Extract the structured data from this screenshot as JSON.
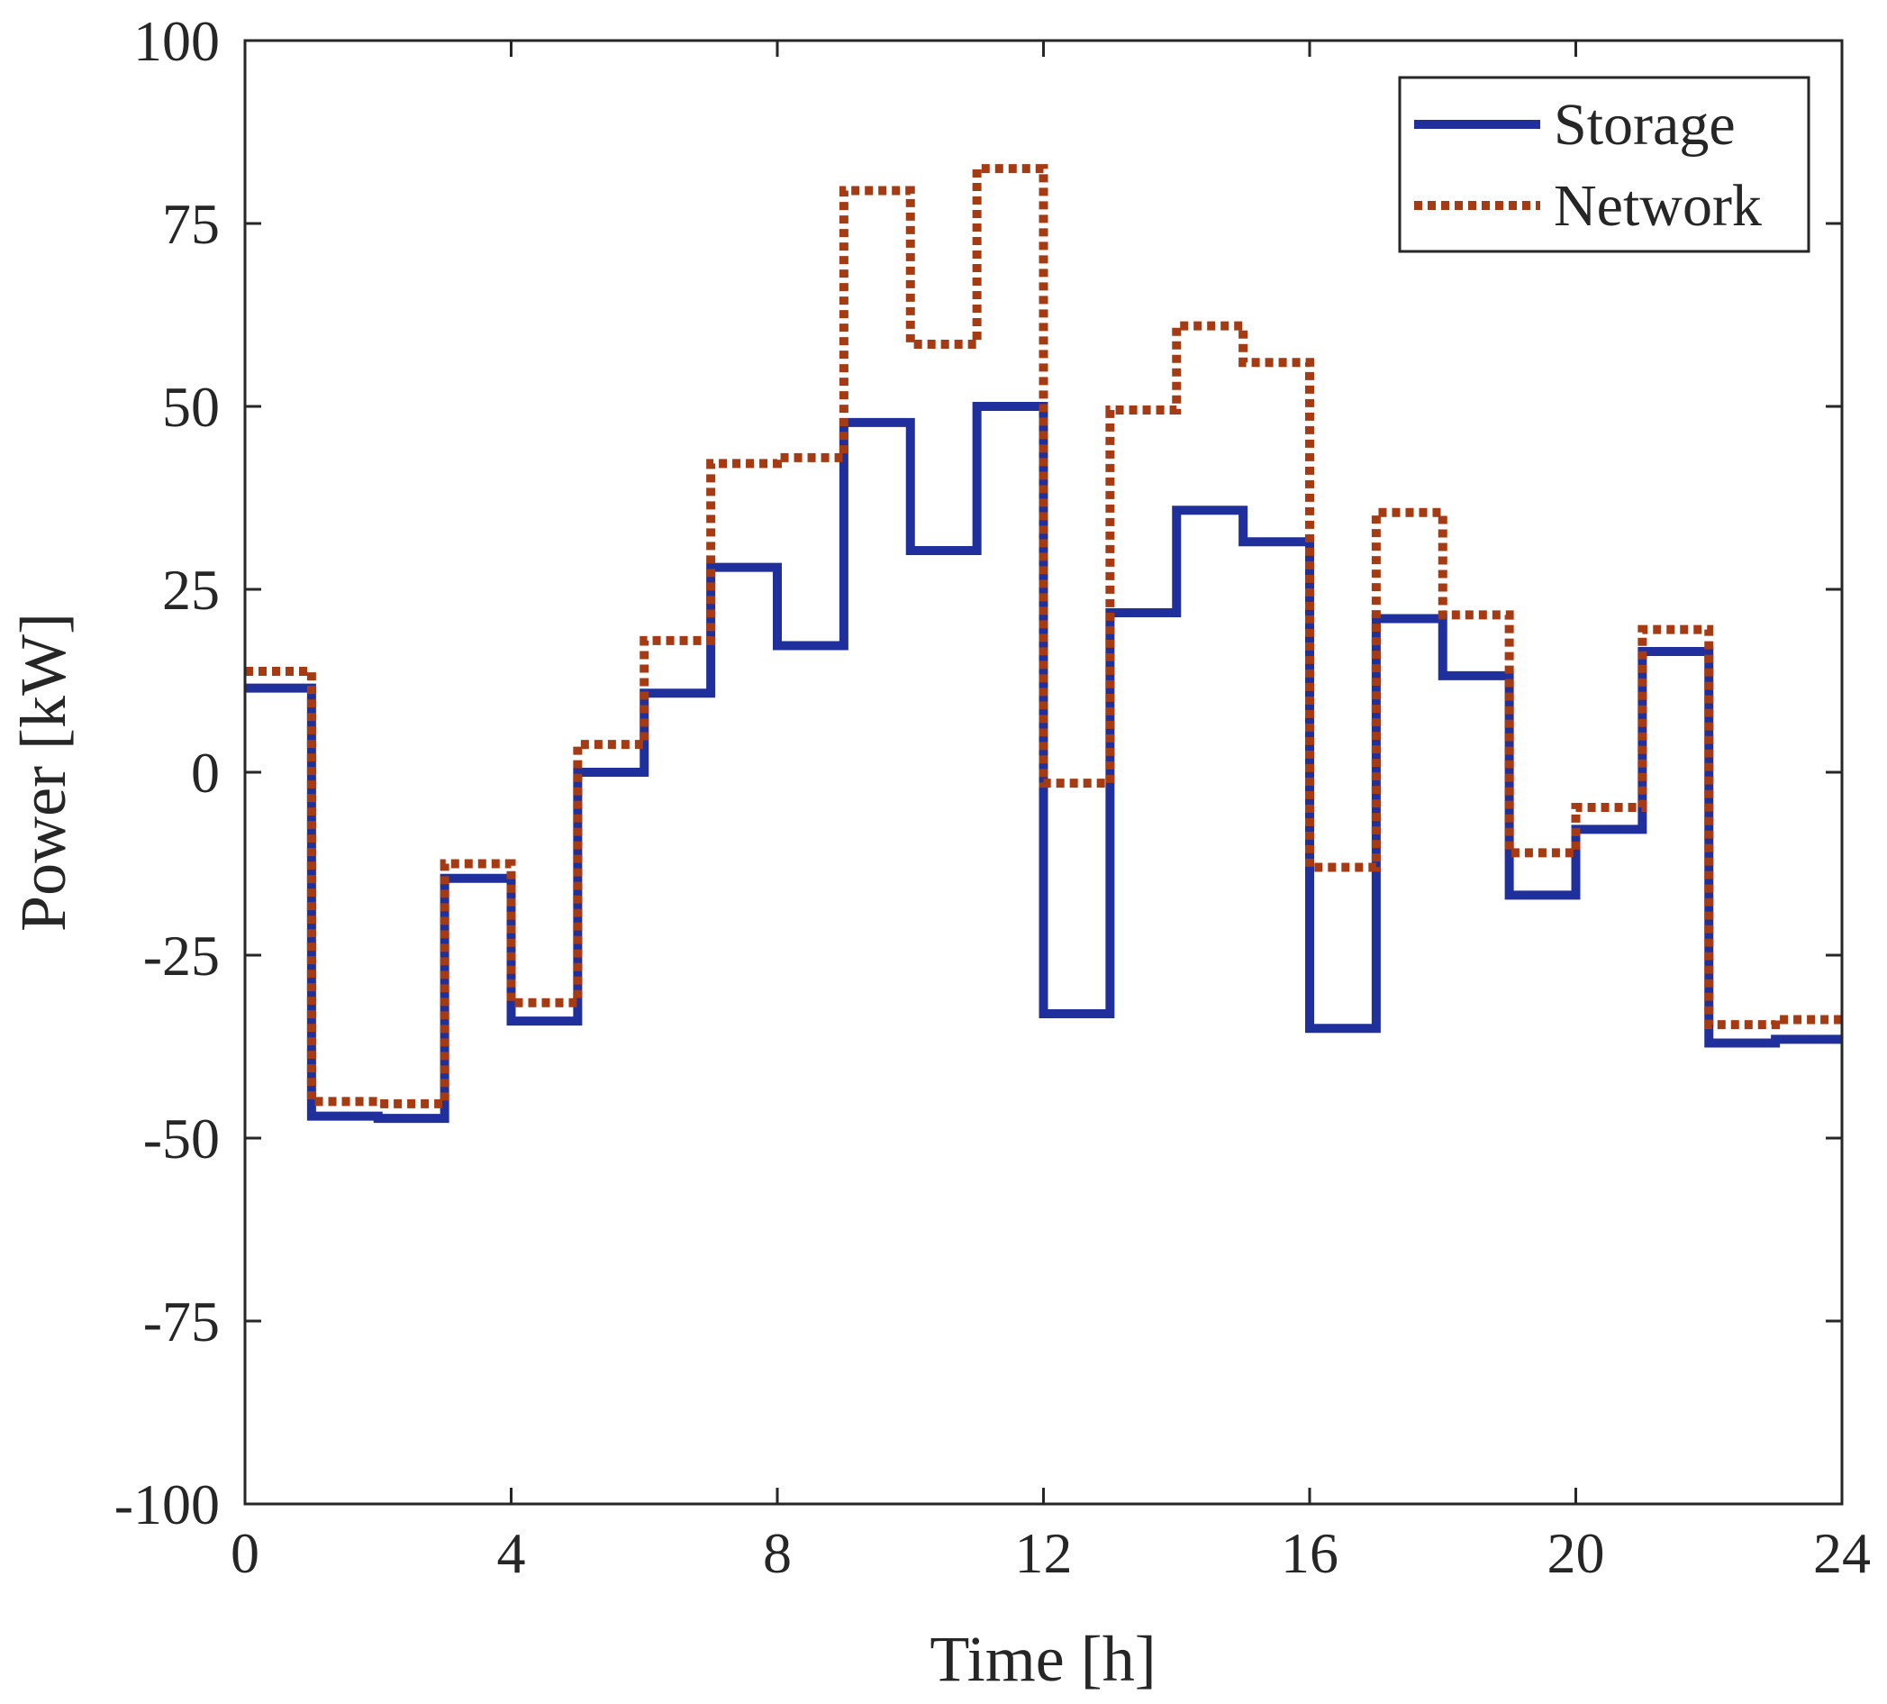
{
  "chart_data": {
    "type": "line",
    "step": "post",
    "title": "",
    "xlabel": "Time [h]",
    "ylabel": "Power [kW]",
    "xlim": [
      0,
      24
    ],
    "ylim": [
      -100,
      100
    ],
    "xticks": [
      0,
      4,
      8,
      12,
      16,
      20,
      24
    ],
    "yticks": [
      -100,
      -75,
      -50,
      -25,
      0,
      25,
      50,
      75,
      100
    ],
    "grid": false,
    "legend_position": "top-right",
    "x": [
      0,
      1,
      2,
      3,
      4,
      5,
      6,
      7,
      8,
      9,
      10,
      11,
      12,
      13,
      14,
      15,
      16,
      17,
      18,
      19,
      20,
      21,
      22,
      23,
      24
    ],
    "series": [
      {
        "name": "Storage",
        "color": "#1f2f9c",
        "style": "solid",
        "values": [
          11.5,
          -47,
          -47.3,
          -14.5,
          -34,
          0,
          10.8,
          28,
          17.3,
          47.8,
          30.3,
          50,
          -33,
          21.8,
          35.8,
          31.5,
          -35,
          21,
          13.2,
          -16.8,
          -7.8,
          16.5,
          -37,
          -36.5,
          -36.5
        ]
      },
      {
        "name": "Network",
        "color": "#a53a13",
        "style": "dotted",
        "values": [
          13.8,
          -45,
          -45.3,
          -12.5,
          -31.5,
          3.8,
          18,
          42.2,
          43,
          79.5,
          58.5,
          82.5,
          -1.5,
          49.5,
          61,
          56,
          -13,
          35.5,
          21.5,
          -11,
          -4.8,
          19.5,
          -34.5,
          -33.8,
          -33.8
        ]
      }
    ]
  }
}
